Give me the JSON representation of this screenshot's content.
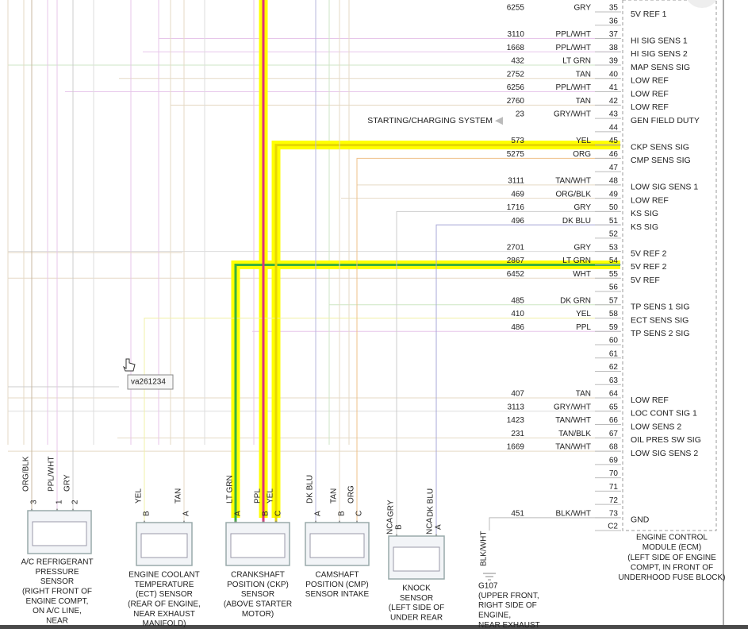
{
  "tooltip": "va261234",
  "connector": {
    "rows": [
      {
        "pin": 35,
        "circuit": "6255",
        "color": "GRY",
        "function": "5V REF 1"
      },
      {
        "pin": 36
      },
      {
        "pin": 37,
        "circuit": "3110",
        "color": "PPL/WHT",
        "function": "HI SIG SENS 1"
      },
      {
        "pin": 38,
        "circuit": "1668",
        "color": "PPL/WHT",
        "function": "HI SIG SENS 2"
      },
      {
        "pin": 39,
        "circuit": "432",
        "color": "LT GRN",
        "function": "MAP SENS SIG"
      },
      {
        "pin": 40,
        "circuit": "2752",
        "color": "TAN",
        "function": "LOW REF"
      },
      {
        "pin": 41,
        "circuit": "6256",
        "color": "PPL/WHT",
        "function": "LOW REF"
      },
      {
        "pin": 42,
        "circuit": "2760",
        "color": "TAN",
        "function": "LOW REF"
      },
      {
        "pin": 43,
        "circuit": "23",
        "color": "GRY/WHT",
        "function": "GEN FIELD DUTY",
        "note": "STARTING/CHARGING SYSTEM"
      },
      {
        "pin": 44
      },
      {
        "pin": 45,
        "circuit": "573",
        "color": "YEL",
        "function": "CKP SENS SIG"
      },
      {
        "pin": 46,
        "circuit": "5275",
        "color": "ORG",
        "function": "CMP SENS SIG"
      },
      {
        "pin": 47
      },
      {
        "pin": 48,
        "circuit": "3111",
        "color": "TAN/WHT",
        "function": "LOW SIG SENS 1"
      },
      {
        "pin": 49,
        "circuit": "469",
        "color": "ORG/BLK",
        "function": "LOW REF"
      },
      {
        "pin": 50,
        "circuit": "1716",
        "color": "GRY",
        "function": "KS SIG"
      },
      {
        "pin": 51,
        "circuit": "496",
        "color": "DK BLU",
        "function": "KS SIG"
      },
      {
        "pin": 52
      },
      {
        "pin": 53,
        "circuit": "2701",
        "color": "GRY",
        "function": "5V REF 2"
      },
      {
        "pin": 54,
        "circuit": "2867",
        "color": "LT GRN",
        "function": "5V REF 2"
      },
      {
        "pin": 55,
        "circuit": "6452",
        "color": "WHT",
        "function": "5V REF"
      },
      {
        "pin": 56
      },
      {
        "pin": 57,
        "circuit": "485",
        "color": "DK GRN",
        "function": "TP SENS 1 SIG"
      },
      {
        "pin": 58,
        "circuit": "410",
        "color": "YEL",
        "function": "ECT SENS SIG"
      },
      {
        "pin": 59,
        "circuit": "486",
        "color": "PPL",
        "function": "TP SENS 2 SIG"
      },
      {
        "pin": 60
      },
      {
        "pin": 61
      },
      {
        "pin": 62
      },
      {
        "pin": 63
      },
      {
        "pin": 64,
        "circuit": "407",
        "color": "TAN",
        "function": "LOW REF"
      },
      {
        "pin": 65,
        "circuit": "3113",
        "color": "GRY/WHT",
        "function": "LOC CONT SIG 1"
      },
      {
        "pin": 66,
        "circuit": "1423",
        "color": "TAN/WHT",
        "function": "LOW SENS 2"
      },
      {
        "pin": 67,
        "circuit": "231",
        "color": "TAN/BLK",
        "function": "OIL PRES SW SIG"
      },
      {
        "pin": 68,
        "circuit": "1669",
        "color": "TAN/WHT",
        "function": "LOW SIG SENS 2"
      },
      {
        "pin": 69
      },
      {
        "pin": 70
      },
      {
        "pin": 71
      },
      {
        "pin": 72
      },
      {
        "pin": 73,
        "circuit": "451",
        "color": "BLK/WHT",
        "function": "GND"
      },
      {
        "pin": "C2"
      }
    ],
    "label": [
      "ENGINE CONTROL",
      "MODULE (ECM)",
      "(LEFT SIDE OF ENGINE",
      "COMPT, IN FRONT OF",
      "UNDERHOOD FUSE BLOCK)"
    ]
  },
  "components": [
    {
      "label": [
        "A/C REFRIGERANT",
        "PRESSURE",
        "SENSOR",
        "(RIGHT FRONT OF",
        "ENGINE COMPT,",
        "ON A/C LINE,",
        "NEAR"
      ],
      "wires": [
        {
          "pin": "3",
          "color": "ORG/BLK"
        },
        {
          "pin": "1",
          "color": "PPL/WHT"
        },
        {
          "pin": "2",
          "color": "GRY"
        }
      ]
    },
    {
      "label": [
        "ENGINE COOLANT",
        "TEMPERATURE",
        "(ECT) SENSOR",
        "(REAR OF ENGINE,",
        "NEAR EXHAUST",
        "MANIFOLD)"
      ],
      "wires": [
        {
          "pin": "B",
          "color": "YEL"
        },
        {
          "pin": "A",
          "color": "TAN"
        }
      ]
    },
    {
      "label": [
        "CRANKSHAFT",
        "POSITION (CKP)",
        "SENSOR",
        "(ABOVE STARTER",
        "MOTOR)"
      ],
      "wires": [
        {
          "pin": "A",
          "color": "LT GRN"
        },
        {
          "pin": "B",
          "color": "PPL"
        },
        {
          "pin": "C",
          "color": "YEL"
        }
      ]
    },
    {
      "label": [
        "CAMSHAFT",
        "POSITION (CMP)",
        "SENSOR INTAKE"
      ],
      "wires": [
        {
          "pin": "A",
          "color": "DK BLU"
        },
        {
          "pin": "B",
          "color": "TAN"
        },
        {
          "pin": "C",
          "color": "ORG"
        }
      ]
    },
    {
      "label": [
        "KNOCK",
        "SENSOR",
        "(LEFT SIDE OF",
        "UNDER REAR"
      ],
      "wires": [
        {
          "tag": "NCA",
          "pin": "B",
          "color": "GRY"
        },
        {
          "tag": "NCA",
          "pin": "A",
          "color": "DK BLU"
        }
      ]
    },
    {
      "label": [
        "G107",
        "(UPPER FRONT,",
        "RIGHT SIDE OF",
        "ENGINE,",
        "NEAR EXHAUST"
      ],
      "wires": [
        {
          "color": "BLK/WHT"
        }
      ]
    }
  ]
}
